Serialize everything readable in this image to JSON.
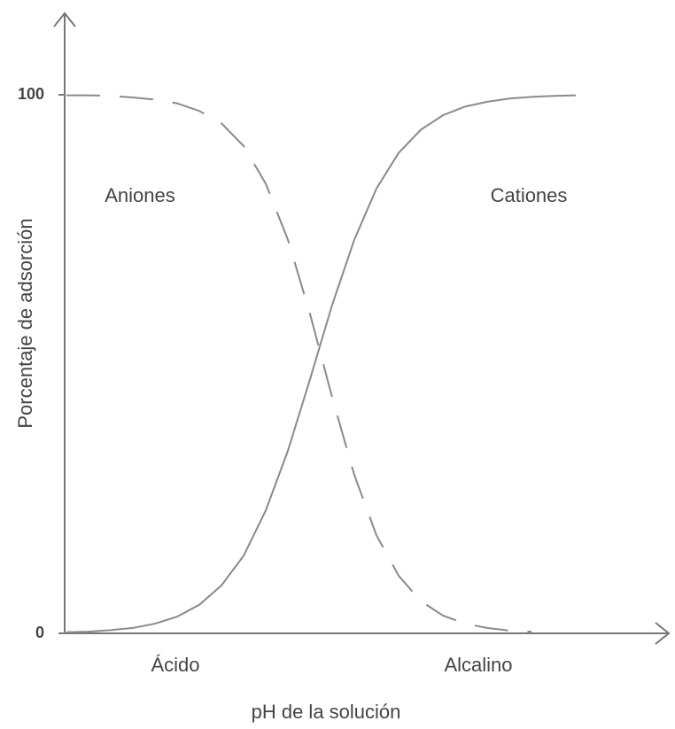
{
  "chart_data": {
    "type": "line",
    "y_label": "Porcentaje de adsorción",
    "x_label": "pH de la solución",
    "x_annotations": [
      "Ácido",
      "Alcalino"
    ],
    "categories": [
      null,
      null,
      null,
      null,
      null,
      null,
      null,
      null,
      null,
      null,
      null,
      null,
      null,
      null,
      null,
      null,
      null,
      null,
      null,
      null,
      null,
      null,
      null,
      null
    ],
    "series": [
      {
        "name": "Aniones",
        "color": "#8a8a8a",
        "style": "dashed",
        "values": [
          99.9,
          99.9,
          99.8,
          99.5,
          99.1,
          98.4,
          97.0,
          94.7,
          90.5,
          83.5,
          73.1,
          59.3,
          43.8,
          29.4,
          18.2,
          10.7,
          6.0,
          3.3,
          1.8,
          1.0,
          0.5,
          0.3,
          null,
          null
        ]
      },
      {
        "name": "Cationes",
        "color": "#8a8a8a",
        "style": "solid",
        "values": [
          0.2,
          0.3,
          0.6,
          1.0,
          1.8,
          3.1,
          5.3,
          8.9,
          14.4,
          22.8,
          33.9,
          47.2,
          61.0,
          73.1,
          82.6,
          89.2,
          93.5,
          96.2,
          97.8,
          98.7,
          99.3,
          99.6,
          99.8,
          99.9
        ]
      }
    ],
    "ylim": [
      0,
      100
    ],
    "yticks": [
      0,
      100
    ]
  }
}
